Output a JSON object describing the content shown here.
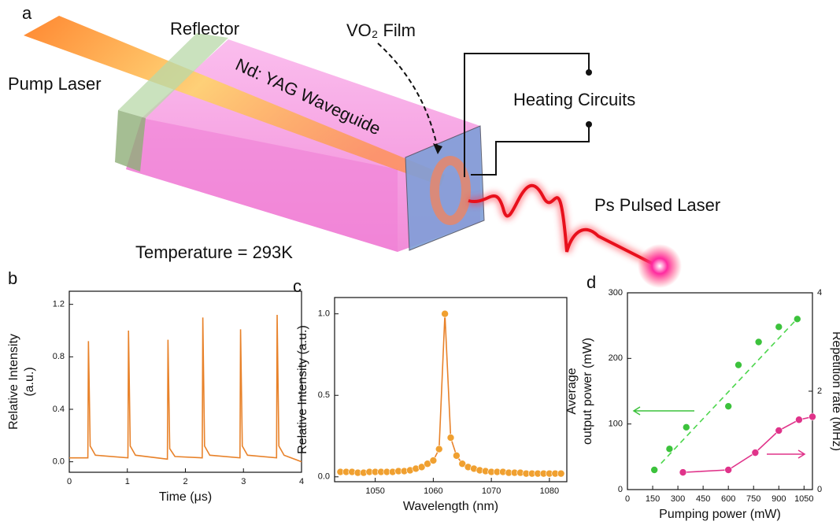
{
  "diagram": {
    "panel": "a",
    "reflector": "Reflector",
    "pump_laser": "Pump Laser",
    "film": "VO₂ Film",
    "waveguide": "Nd: YAG Waveguide",
    "heating": "Heating Circuits",
    "output": "Ps Pulsed Laser",
    "temperature": "Temperature = 293K"
  },
  "chart_data": [
    {
      "type": "line",
      "panel": "b",
      "x_label": "Time (μs)",
      "y_label": [
        "Relative Intensity",
        "(a.u.)"
      ],
      "xlim": [
        0,
        4
      ],
      "xticks": [
        0,
        1,
        2,
        3,
        4
      ],
      "ylim": [
        -0.08,
        1.3
      ],
      "yticks": [
        {
          "value": 0,
          "label": "0.0"
        },
        0.4,
        0.8,
        1.2
      ],
      "series": [
        {
          "color": "#e8822a",
          "markers": false,
          "x": [
            0,
            0.32,
            0.33,
            0.36,
            0.45,
            1.01,
            1.02,
            1.05,
            1.14,
            1.69,
            1.7,
            1.73,
            1.82,
            2.29,
            2.3,
            2.33,
            2.42,
            2.94,
            2.95,
            2.98,
            3.07,
            3.57,
            3.58,
            3.61,
            3.7,
            4
          ],
          "values": [
            0.03,
            0.03,
            0.92,
            0.12,
            0.05,
            0.03,
            1.0,
            0.12,
            0.05,
            0.02,
            0.93,
            0.1,
            0.04,
            0.03,
            1.1,
            0.12,
            0.05,
            0.03,
            1.01,
            0.12,
            0.05,
            0.03,
            1.12,
            0.12,
            0.05,
            0.0
          ]
        }
      ]
    },
    {
      "type": "line",
      "panel": "c",
      "x_label": "Wavelength (nm)",
      "y_label": [
        "Relative Intensity (a.u.)"
      ],
      "xlim": [
        1043,
        1083
      ],
      "xticks": [
        1050,
        1060,
        1070,
        1080
      ],
      "ylim": [
        -0.03,
        1.1
      ],
      "yticks": [
        {
          "value": 0,
          "label": "0.0"
        },
        0.5,
        {
          "value": 1,
          "label": "1.0"
        }
      ],
      "series": [
        {
          "color": "#f0a030",
          "line_color": "#e8822a",
          "markers": true,
          "x": [
            1044,
            1045,
            1046,
            1047,
            1048,
            1049,
            1050,
            1051,
            1052,
            1053,
            1054,
            1055,
            1056,
            1057,
            1058,
            1059,
            1060,
            1061,
            1062,
            1063,
            1064,
            1065,
            1066,
            1067,
            1068,
            1069,
            1070,
            1071,
            1072,
            1073,
            1074,
            1075,
            1076,
            1077,
            1078,
            1079,
            1080,
            1081,
            1082
          ],
          "values": [
            0.03,
            0.03,
            0.03,
            0.025,
            0.025,
            0.03,
            0.03,
            0.03,
            0.03,
            0.03,
            0.035,
            0.035,
            0.04,
            0.05,
            0.06,
            0.08,
            0.1,
            0.17,
            1.0,
            0.24,
            0.13,
            0.08,
            0.06,
            0.05,
            0.04,
            0.035,
            0.03,
            0.03,
            0.03,
            0.025,
            0.025,
            0.025,
            0.02,
            0.02,
            0.02,
            0.02,
            0.02,
            0.02,
            0.02
          ]
        }
      ]
    },
    {
      "type": "scatter",
      "panel": "d",
      "x_label": "Pumping power (mW)",
      "y_label": [
        "Average",
        "output power (mW)"
      ],
      "y2_label": "Repetition rate (MHz)",
      "xlim": [
        0,
        1100
      ],
      "xticks": [
        0,
        150,
        300,
        450,
        600,
        750,
        900,
        1050
      ],
      "ylim": [
        0,
        300
      ],
      "yticks": [
        0,
        100,
        200,
        300
      ],
      "y2lim": [
        0,
        4
      ],
      "y2ticks": [
        0,
        2,
        4
      ],
      "series": [
        {
          "color": "#3cc23c",
          "markers": true,
          "line": false,
          "x": [
            160,
            250,
            350,
            600,
            660,
            780,
            900,
            1010
          ],
          "values": [
            30,
            62,
            95,
            127,
            190,
            225,
            248,
            260
          ]
        },
        {
          "color": "#4cd64c",
          "markers": false,
          "line": true,
          "dash": true,
          "x": [
            200,
            1000
          ],
          "values": [
            40,
            258
          ]
        },
        {
          "color": "#e0338a",
          "markers": true,
          "line": true,
          "axis": "y2",
          "x": [
            330,
            600,
            760,
            900,
            1020,
            1100
          ],
          "values": [
            0.35,
            0.4,
            0.75,
            1.2,
            1.42,
            1.48
          ]
        }
      ]
    }
  ]
}
